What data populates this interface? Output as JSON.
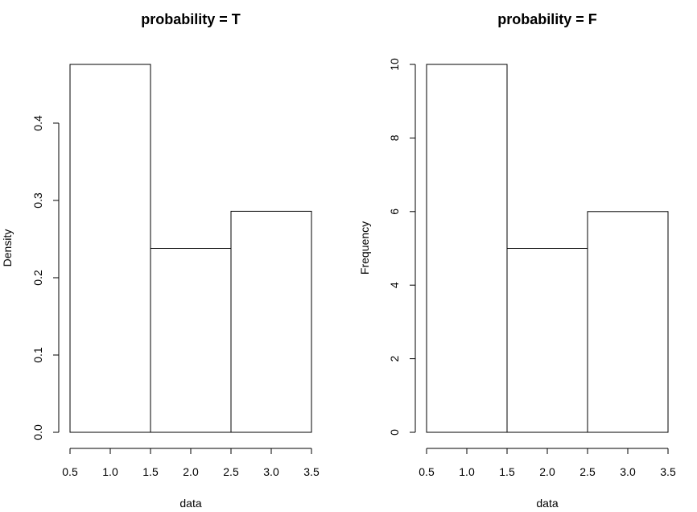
{
  "chart_data": [
    {
      "type": "bar",
      "title": "probability = T",
      "xlabel": "data",
      "ylabel": "Density",
      "bins": [
        [
          0.5,
          1.5
        ],
        [
          1.5,
          2.5
        ],
        [
          2.5,
          3.5
        ]
      ],
      "values": [
        0.476,
        0.238,
        0.286
      ],
      "xlim": [
        0.5,
        3.5
      ],
      "ylim": [
        0,
        0.476
      ],
      "xticks": [
        "0.5",
        "1.0",
        "1.5",
        "2.0",
        "2.5",
        "3.0",
        "3.5"
      ],
      "yticks": [
        "0.0",
        "0.1",
        "0.2",
        "0.3",
        "0.4"
      ],
      "grid": false
    },
    {
      "type": "bar",
      "title": "probability = F",
      "xlabel": "data",
      "ylabel": "Frequency",
      "bins": [
        [
          0.5,
          1.5
        ],
        [
          1.5,
          2.5
        ],
        [
          2.5,
          3.5
        ]
      ],
      "values": [
        10,
        5,
        6
      ],
      "xlim": [
        0.5,
        3.5
      ],
      "ylim": [
        0,
        10
      ],
      "xticks": [
        "0.5",
        "1.0",
        "1.5",
        "2.0",
        "2.5",
        "3.0",
        "3.5"
      ],
      "yticks": [
        "0",
        "2",
        "4",
        "6",
        "8",
        "10"
      ],
      "grid": false
    }
  ]
}
